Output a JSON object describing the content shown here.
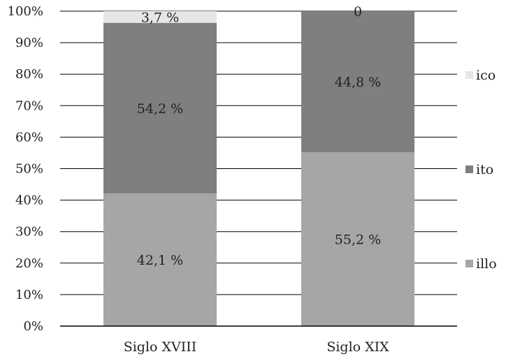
{
  "chart_data": {
    "type": "bar",
    "stacked": true,
    "categories": [
      "Siglo XVIII",
      "Siglo XIX"
    ],
    "series": [
      {
        "name": "illo",
        "values": [
          42.1,
          55.2
        ],
        "labels": [
          "42,1 %",
          "55,2 %"
        ],
        "color": "#a6a6a6"
      },
      {
        "name": "ito",
        "values": [
          54.2,
          44.8
        ],
        "labels": [
          "54,2 %",
          "44,8 %"
        ],
        "color": "#7f7f7f"
      },
      {
        "name": "ico",
        "values": [
          3.7,
          0
        ],
        "labels": [
          "3,7 %",
          "0"
        ],
        "color": "#e6e6e6"
      }
    ],
    "ylim": [
      0,
      100
    ],
    "yticks": [
      "0%",
      "10%",
      "20%",
      "30%",
      "40%",
      "50%",
      "60%",
      "70%",
      "80%",
      "90%",
      "100%"
    ],
    "grid": true,
    "legend_position": "right",
    "legend_order": [
      "ico",
      "ito",
      "illo"
    ]
  }
}
